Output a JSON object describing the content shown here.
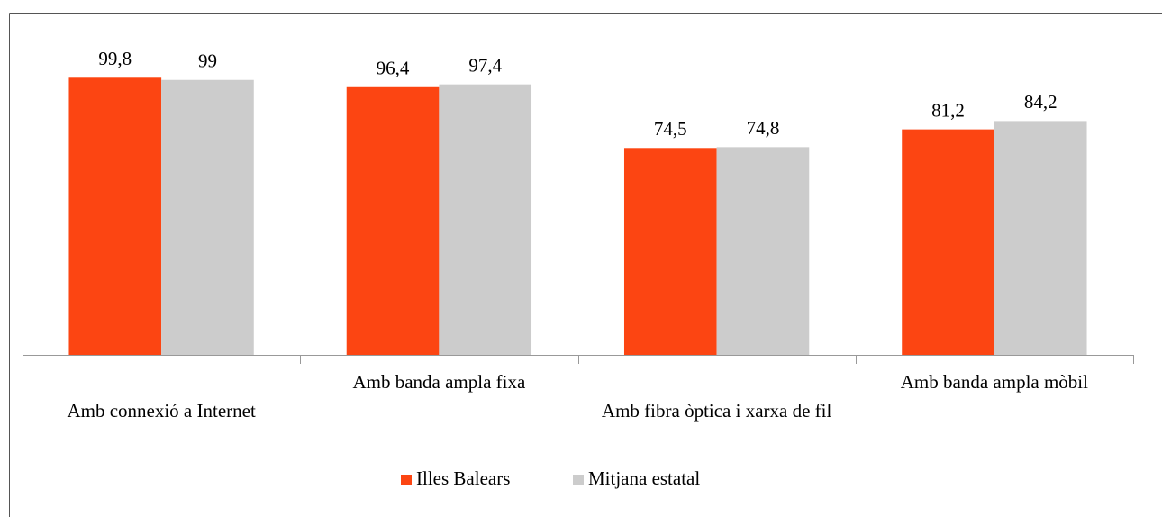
{
  "chart_data": {
    "type": "bar",
    "categories": [
      "Amb connexió a Internet",
      "Amb banda ampla fixa",
      "Amb fibra òptica i xarxa de fil",
      "Amb banda ampla mòbil"
    ],
    "series": [
      {
        "name": "Illes Balears",
        "color": "#fc4512",
        "values": [
          99.8,
          96.4,
          74.5,
          81.2
        ],
        "value_labels": [
          "99,8",
          "96,4",
          "74,5",
          "81,2"
        ]
      },
      {
        "name": "Mitjana estatal",
        "color": "#cccccc",
        "values": [
          99,
          97.4,
          74.8,
          84.2
        ],
        "value_labels": [
          "99",
          "97,4",
          "74,8",
          "84,2"
        ]
      }
    ],
    "ylim": [
      0,
      120
    ],
    "legend": "bottom"
  }
}
